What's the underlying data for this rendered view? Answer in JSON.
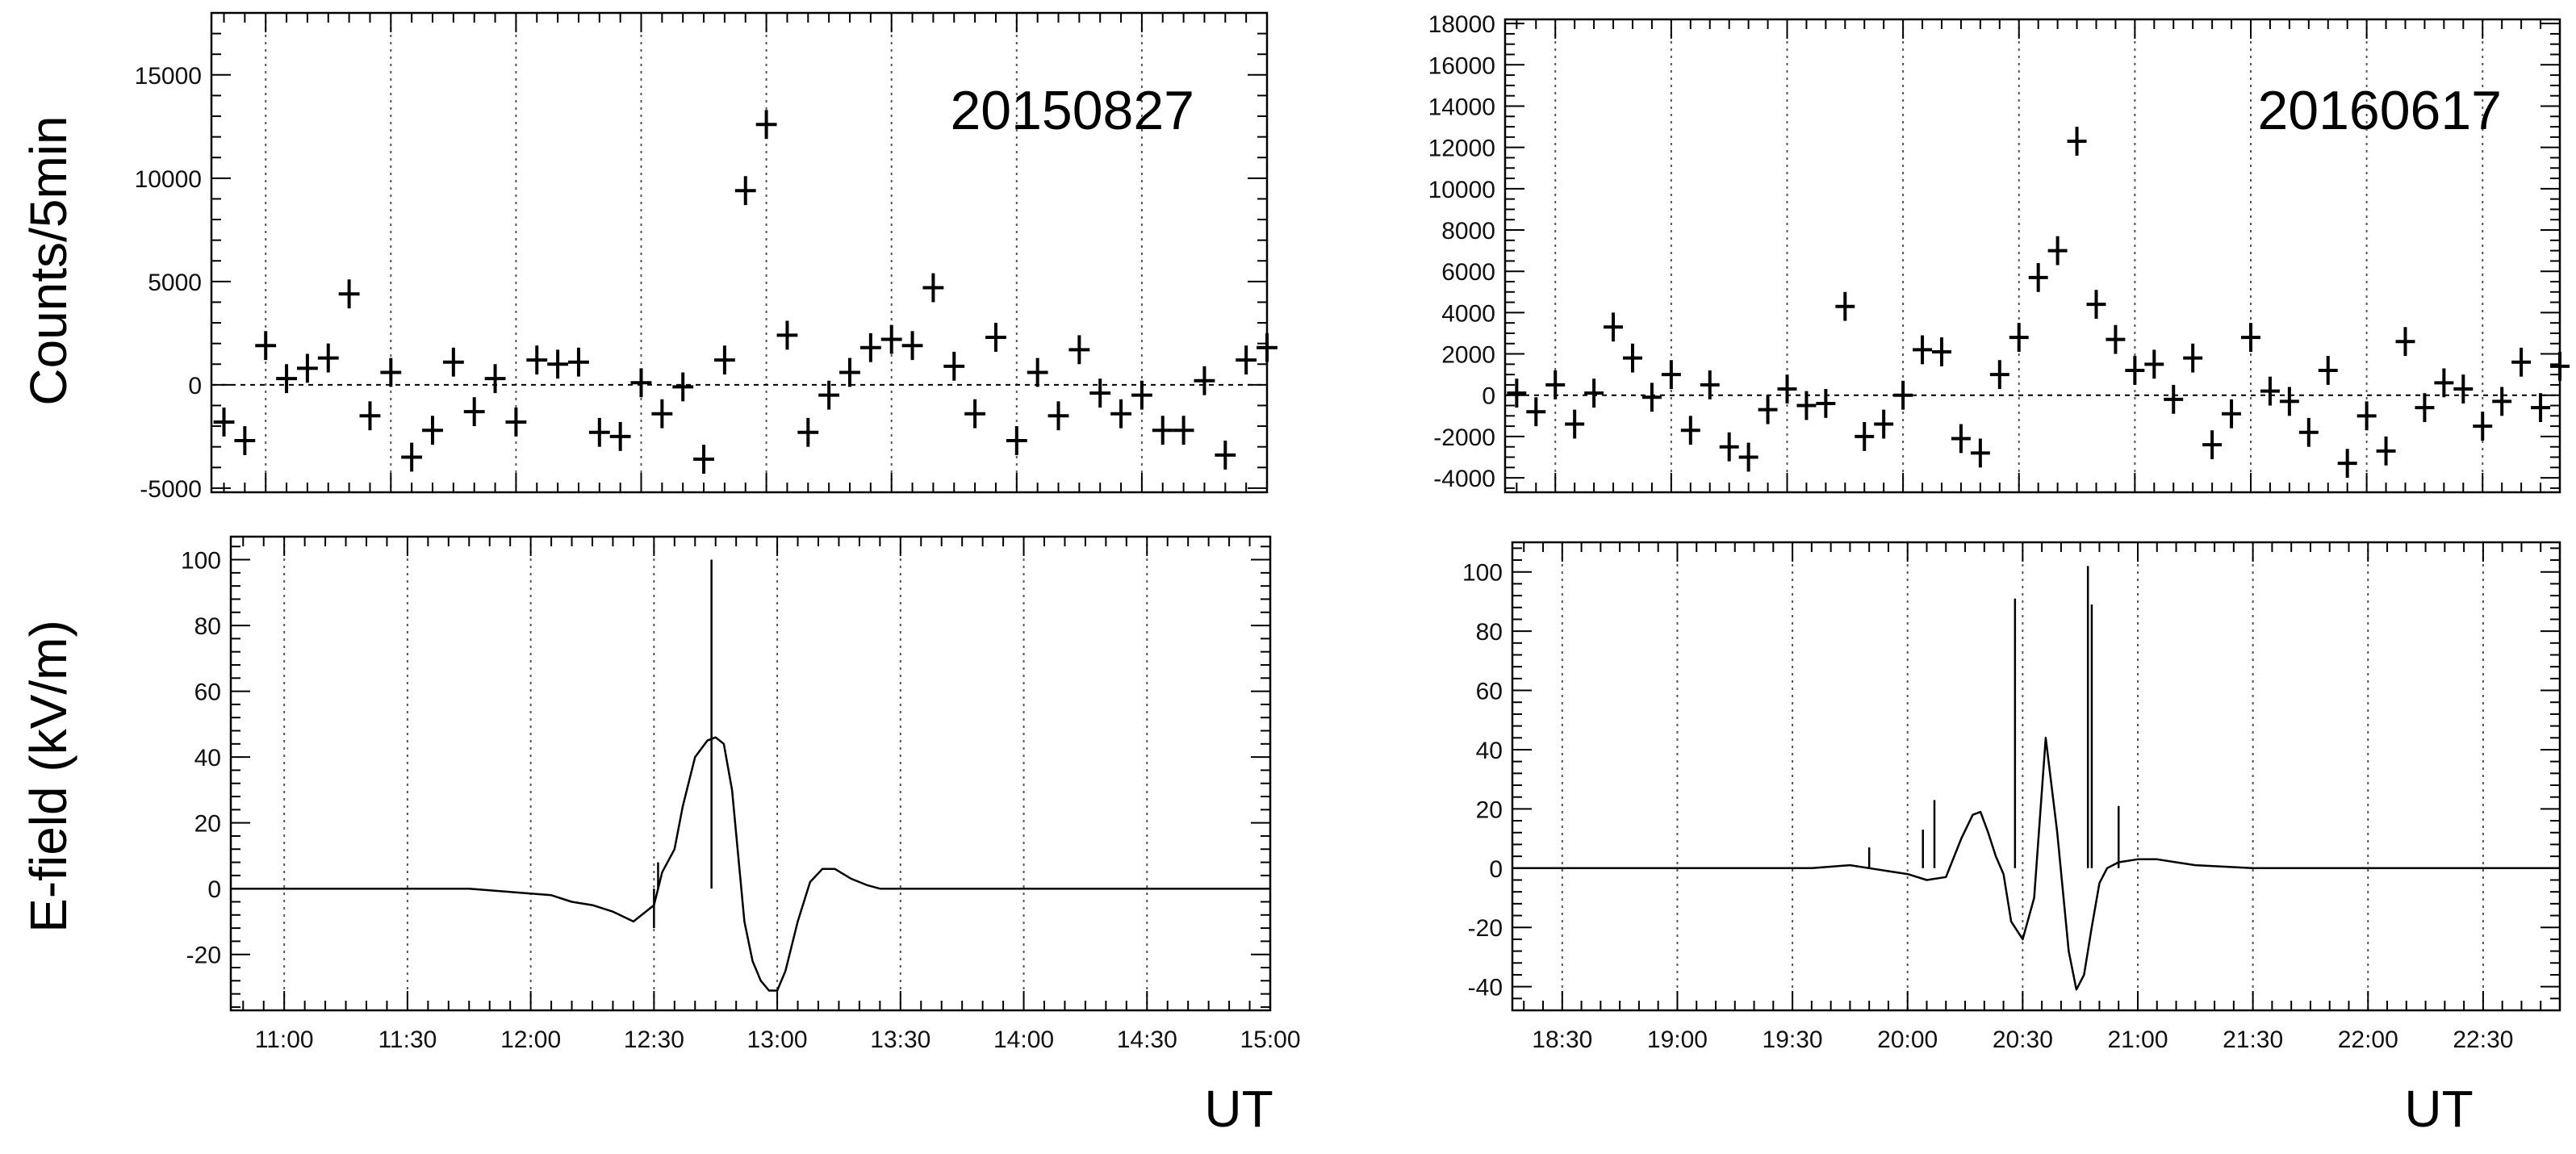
{
  "figure": {
    "ylabel_top": "Counts/5min",
    "ylabel_bottom": "E-field (kV/m)",
    "unit_label": "UT"
  },
  "chart_data": [
    {
      "id": "left_top",
      "type": "scatter",
      "title": "20150827",
      "xlabel": "",
      "ylabel": "Counts/5min",
      "xlim": [
        "10:47",
        "15:00"
      ],
      "ylim": [
        -5200,
        18000
      ],
      "yticks": [
        -5000,
        0,
        5000,
        10000,
        15000
      ],
      "xgrid": [
        "11:00",
        "11:30",
        "12:00",
        "12:30",
        "13:00",
        "13:30",
        "14:00",
        "14:30"
      ],
      "zero_line": true,
      "bin_minutes": 5,
      "error_half": 700,
      "x": [
        "10:50",
        "10:55",
        "11:00",
        "11:05",
        "11:10",
        "11:15",
        "11:20",
        "11:25",
        "11:30",
        "11:35",
        "11:40",
        "11:45",
        "11:50",
        "11:55",
        "12:00",
        "12:05",
        "12:10",
        "12:15",
        "12:20",
        "12:25",
        "12:30",
        "12:35",
        "12:40",
        "12:45",
        "12:50",
        "12:55",
        "13:00",
        "13:05",
        "13:10",
        "13:15",
        "13:20",
        "13:25",
        "13:30",
        "13:35",
        "13:40",
        "13:45",
        "13:50",
        "13:55",
        "14:00",
        "14:05",
        "14:10",
        "14:15",
        "14:20",
        "14:25",
        "14:30",
        "14:35",
        "14:40",
        "14:45",
        "14:50",
        "14:55",
        "15:00"
      ],
      "y": [
        -1800,
        -2700,
        1900,
        300,
        800,
        1300,
        4400,
        -1500,
        600,
        -3500,
        -2200,
        1100,
        -1300,
        300,
        -1800,
        1200,
        1000,
        1100,
        -2300,
        -2500,
        100,
        -1400,
        -100,
        -3600,
        1200,
        9400,
        12600,
        2400,
        -2300,
        -500,
        600,
        1800,
        2200,
        1900,
        4700,
        900,
        -1400,
        2300,
        -2700,
        600,
        -1500,
        1700,
        -400,
        -1400,
        -500,
        -2200,
        -2200,
        200,
        -3400,
        1200,
        1800
      ]
    },
    {
      "id": "left_bottom",
      "type": "line",
      "title": "",
      "xlabel": "UT",
      "ylabel": "E-field (kV/m)",
      "xlim": [
        "10:47",
        "15:00"
      ],
      "ylim": [
        -37,
        107
      ],
      "yticks": [
        -20,
        0,
        20,
        40,
        60,
        80,
        100
      ],
      "xticks": [
        "11:00",
        "11:30",
        "12:00",
        "12:30",
        "13:00",
        "13:30",
        "14:00",
        "14:30",
        "15:00"
      ],
      "x": [
        "10:47",
        "11:45",
        "11:55",
        "12:05",
        "12:10",
        "12:15",
        "12:20",
        "12:25",
        "12:30",
        "12:32",
        "12:35",
        "12:37",
        "12:40",
        "12:43",
        "12:45",
        "12:47",
        "12:49",
        "12:52",
        "12:54",
        "12:56",
        "12:58",
        "13:00",
        "13:02",
        "13:05",
        "13:08",
        "13:11",
        "13:14",
        "13:18",
        "13:22",
        "13:25",
        "15:00"
      ],
      "y": [
        0,
        0,
        -1,
        -2,
        -4,
        -5,
        -7,
        -10,
        -5,
        5,
        12,
        25,
        40,
        45,
        46,
        44,
        30,
        -10,
        -22,
        -28,
        -31,
        -31,
        -25,
        -10,
        2,
        6,
        6,
        3,
        1,
        0,
        0
      ],
      "spikes": [
        {
          "x": "12:44",
          "y": 100
        },
        {
          "x": "12:30",
          "y": -12
        },
        {
          "x": "12:31",
          "y": 8
        }
      ]
    },
    {
      "id": "right_top",
      "type": "scatter",
      "title": "20160617",
      "xlabel": "",
      "ylabel": "Counts/5min",
      "xlim": [
        "18:17",
        "22:50"
      ],
      "ylim": [
        -4700,
        18200
      ],
      "yticks": [
        -4000,
        -2000,
        0,
        2000,
        4000,
        6000,
        8000,
        10000,
        12000,
        14000,
        16000,
        18000
      ],
      "xgrid": [
        "18:30",
        "19:00",
        "19:30",
        "20:00",
        "20:30",
        "21:00",
        "21:30",
        "22:00",
        "22:30"
      ],
      "zero_line": true,
      "bin_minutes": 5,
      "error_half": 700,
      "x": [
        "18:20",
        "18:25",
        "18:30",
        "18:35",
        "18:40",
        "18:45",
        "18:50",
        "18:55",
        "19:00",
        "19:05",
        "19:10",
        "19:15",
        "19:20",
        "19:25",
        "19:30",
        "19:35",
        "19:40",
        "19:45",
        "19:50",
        "19:55",
        "20:00",
        "20:05",
        "20:10",
        "20:15",
        "20:20",
        "20:25",
        "20:30",
        "20:35",
        "20:40",
        "20:45",
        "20:50",
        "20:55",
        "21:00",
        "21:05",
        "21:10",
        "21:15",
        "21:20",
        "21:25",
        "21:30",
        "21:35",
        "21:40",
        "21:45",
        "21:50",
        "21:55",
        "22:00",
        "22:05",
        "22:10",
        "22:15",
        "22:20",
        "22:25",
        "22:30",
        "22:35",
        "22:40",
        "22:45",
        "22:50"
      ],
      "y": [
        100,
        -800,
        500,
        -1400,
        100,
        3300,
        1800,
        -100,
        1000,
        -1700,
        500,
        -2500,
        -3000,
        -700,
        300,
        -500,
        -400,
        4300,
        -2000,
        -1400,
        0,
        2200,
        2100,
        -2100,
        -2800,
        1000,
        2800,
        5700,
        7000,
        12300,
        4400,
        2700,
        1200,
        1500,
        -200,
        1800,
        -2400,
        -900,
        2800,
        200,
        -300,
        -1800,
        1200,
        -3300,
        -1000,
        -2700,
        2600,
        -600,
        600,
        300,
        -1500,
        -300,
        1600,
        -600,
        1400
      ]
    },
    {
      "id": "right_bottom",
      "type": "line",
      "title": "",
      "xlabel": "UT",
      "ylabel": "E-field (kV/m)",
      "xlim": [
        "18:17",
        "22:50"
      ],
      "ylim": [
        -48,
        110
      ],
      "yticks": [
        -40,
        -20,
        0,
        20,
        40,
        60,
        80,
        100
      ],
      "xticks": [
        "18:30",
        "19:00",
        "19:30",
        "20:00",
        "20:30",
        "21:00",
        "21:30",
        "22:00",
        "22:30"
      ],
      "x": [
        "18:17",
        "19:35",
        "19:45",
        "19:50",
        "19:55",
        "20:00",
        "20:05",
        "20:10",
        "20:14",
        "20:17",
        "20:19",
        "20:21",
        "20:23",
        "20:25",
        "20:27",
        "20:30",
        "20:33",
        "20:36",
        "20:39",
        "20:42",
        "20:44",
        "20:46",
        "20:48",
        "20:50",
        "20:52",
        "20:55",
        "21:00",
        "21:05",
        "21:10",
        "21:15",
        "21:30",
        "22:50"
      ],
      "y": [
        0,
        0,
        1,
        0,
        -1,
        -2,
        -4,
        -3,
        10,
        18,
        19,
        12,
        4,
        -2,
        -18,
        -24,
        -10,
        44,
        12,
        -28,
        -41,
        -36,
        -20,
        -5,
        0,
        2,
        3,
        3,
        2,
        1,
        0,
        0
      ],
      "spikes": [
        {
          "x": "20:28",
          "y": 91
        },
        {
          "x": "20:47",
          "y": 102
        },
        {
          "x": "20:48",
          "y": 89
        },
        {
          "x": "20:04",
          "y": 13
        },
        {
          "x": "20:07",
          "y": 23
        },
        {
          "x": "20:55",
          "y": 21
        },
        {
          "x": "19:50",
          "y": 7
        }
      ]
    }
  ]
}
